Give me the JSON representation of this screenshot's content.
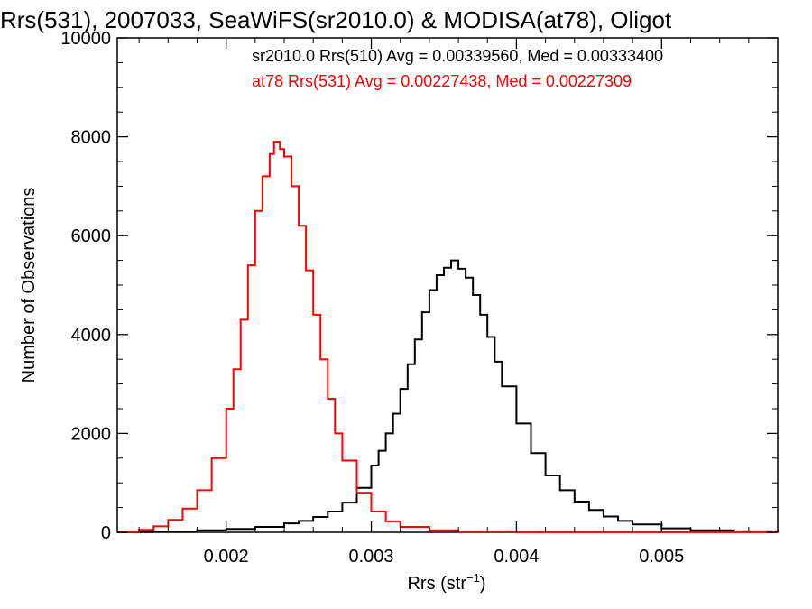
{
  "chart_data": {
    "type": "line",
    "title": "Rrs(531), 2007033, SeaWiFS(sr2010.0) & MODISA(at78), Oligot",
    "xlabel_main": "Rrs (str",
    "xlabel_sup": "−1",
    "xlabel_close": ")",
    "ylabel": "Number of Observations",
    "xlim": [
      0.00125,
      0.0058
    ],
    "ylim": [
      0,
      10000
    ],
    "x_ticks": [
      0.002,
      0.003,
      0.004,
      0.005
    ],
    "x_tick_labels": [
      "0.002",
      "0.003",
      "0.004",
      "0.005"
    ],
    "y_ticks": [
      0,
      2000,
      4000,
      6000,
      8000,
      10000
    ],
    "y_tick_labels": [
      "0",
      "2000",
      "4000",
      "6000",
      "8000",
      "10000"
    ],
    "grid": false,
    "legend_position": "top-right",
    "legend": [
      "sr2010.0 Rrs(510) Avg = 0.00339560, Med = 0.00333400",
      "at78 Rrs(531) Avg = 0.00227438, Med = 0.00227309"
    ],
    "series": [
      {
        "color": "#000000",
        "points": [
          [
            0.00125,
            5
          ],
          [
            0.0015,
            15
          ],
          [
            0.0018,
            40
          ],
          [
            0.002,
            70
          ],
          [
            0.0022,
            110
          ],
          [
            0.0024,
            180
          ],
          [
            0.0025,
            230
          ],
          [
            0.0026,
            310
          ],
          [
            0.0027,
            420
          ],
          [
            0.0028,
            600
          ],
          [
            0.0029,
            900
          ],
          [
            0.003,
            1350
          ],
          [
            0.0031,
            2000
          ],
          [
            0.0032,
            2900
          ],
          [
            0.00305,
            1650
          ],
          [
            0.00315,
            2400
          ],
          [
            0.00325,
            3400
          ],
          [
            0.0033,
            3900
          ],
          [
            0.00335,
            4450
          ],
          [
            0.0034,
            4900
          ],
          [
            0.00345,
            5200
          ],
          [
            0.0035,
            5350
          ],
          [
            0.00355,
            5500
          ],
          [
            0.0036,
            5330
          ],
          [
            0.00365,
            5150
          ],
          [
            0.0037,
            4800
          ],
          [
            0.00375,
            4400
          ],
          [
            0.0038,
            3950
          ],
          [
            0.00385,
            3450
          ],
          [
            0.0039,
            2950
          ],
          [
            0.004,
            2200
          ],
          [
            0.0041,
            1600
          ],
          [
            0.0042,
            1150
          ],
          [
            0.0043,
            850
          ],
          [
            0.0044,
            620
          ],
          [
            0.0045,
            450
          ],
          [
            0.0046,
            320
          ],
          [
            0.0047,
            230
          ],
          [
            0.0048,
            160
          ],
          [
            0.005,
            80
          ],
          [
            0.0052,
            40
          ],
          [
            0.0055,
            20
          ],
          [
            0.0058,
            10
          ]
        ]
      },
      {
        "color": "#ff0000",
        "points": [
          [
            0.00125,
            10
          ],
          [
            0.0014,
            50
          ],
          [
            0.0015,
            120
          ],
          [
            0.0016,
            250
          ],
          [
            0.0017,
            480
          ],
          [
            0.0018,
            850
          ],
          [
            0.0019,
            1500
          ],
          [
            0.002,
            2500
          ],
          [
            0.00205,
            3300
          ],
          [
            0.0021,
            4300
          ],
          [
            0.00215,
            5400
          ],
          [
            0.0022,
            6500
          ],
          [
            0.00225,
            7200
          ],
          [
            0.0023,
            7650
          ],
          [
            0.00233,
            7900
          ],
          [
            0.00237,
            7750
          ],
          [
            0.0024,
            7600
          ],
          [
            0.00245,
            7000
          ],
          [
            0.0025,
            6200
          ],
          [
            0.00255,
            5300
          ],
          [
            0.0026,
            4400
          ],
          [
            0.00265,
            3500
          ],
          [
            0.0027,
            2700
          ],
          [
            0.00275,
            2000
          ],
          [
            0.0028,
            1450
          ],
          [
            0.0029,
            800
          ],
          [
            0.003,
            420
          ],
          [
            0.0031,
            220
          ],
          [
            0.0032,
            110
          ],
          [
            0.0034,
            40
          ],
          [
            0.0036,
            15
          ],
          [
            0.004,
            5
          ],
          [
            0.0058,
            0
          ]
        ]
      }
    ]
  }
}
